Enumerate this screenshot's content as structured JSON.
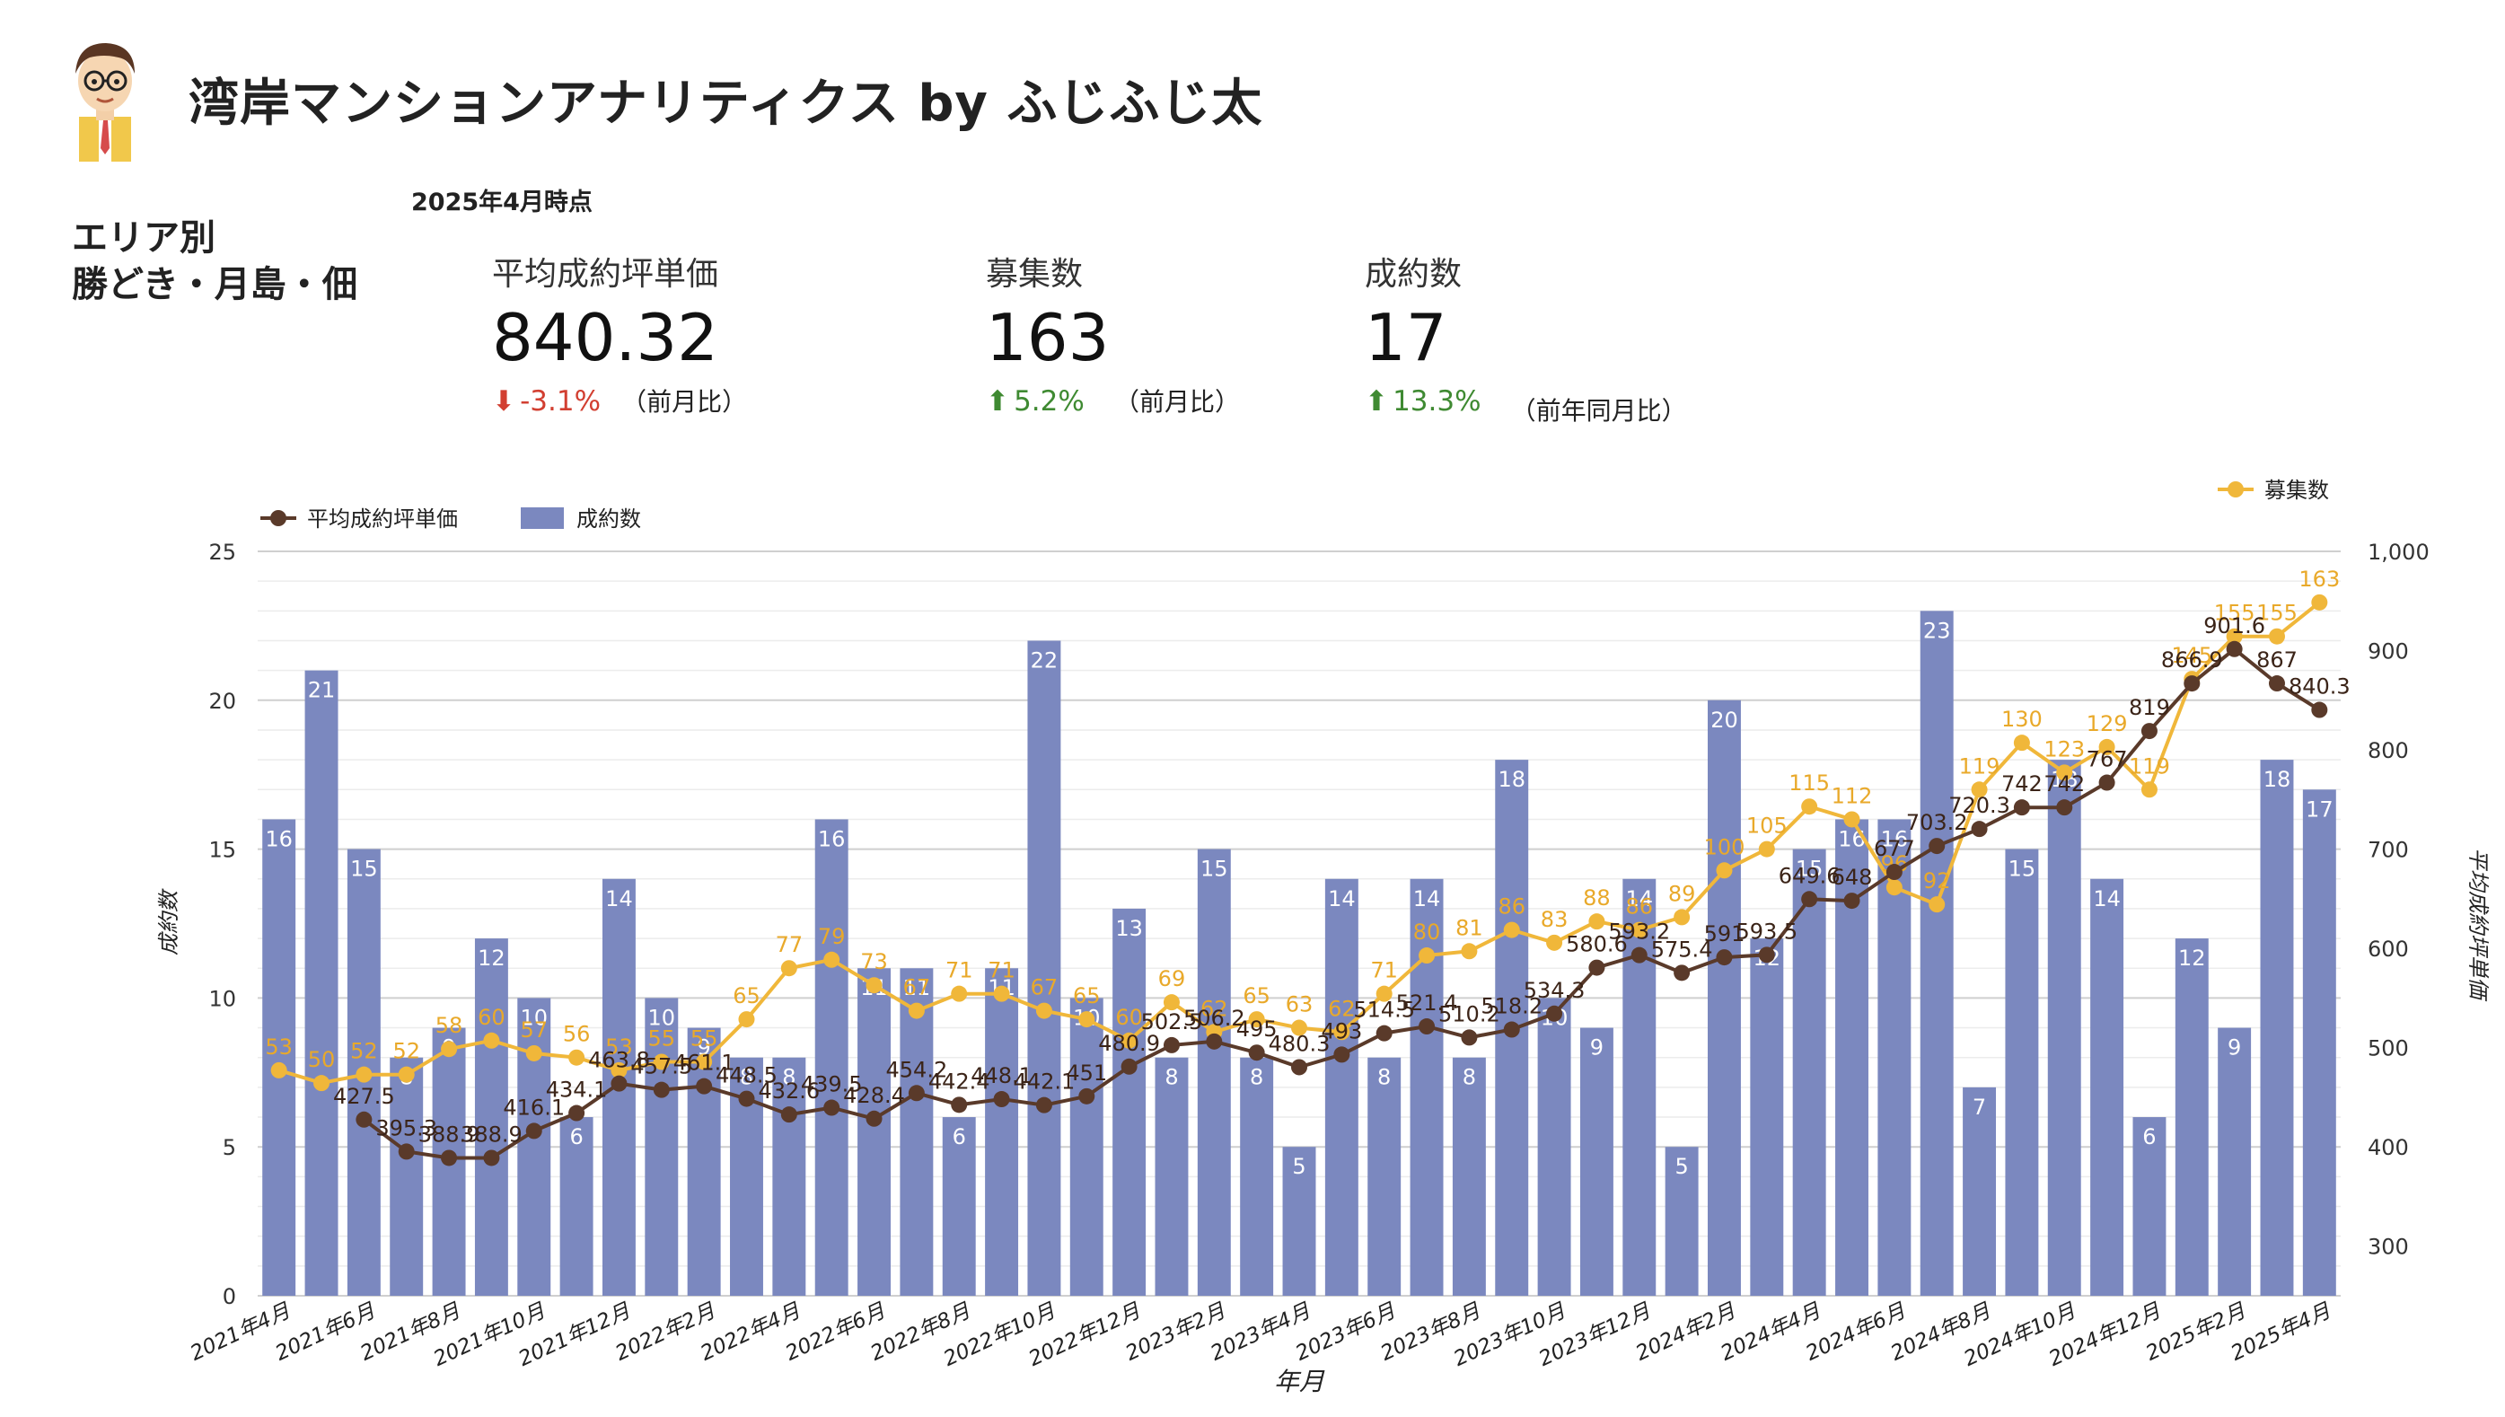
{
  "header": {
    "title": "湾岸マンションアナリティクス by ふじふじ太",
    "as_of": "2025年4月時点",
    "area_line1": "エリア別",
    "area_line2": "勝どき・月島・佃"
  },
  "kpis": [
    {
      "label": "平均成約坪単価",
      "value": "840.32",
      "change": "-3.1%",
      "direction": "down",
      "comparison": "（前月比）"
    },
    {
      "label": "募集数",
      "value": "163",
      "change": "5.2%",
      "direction": "up",
      "comparison": "（前月比）"
    },
    {
      "label": "成約数",
      "value": "17",
      "change": "13.3%",
      "direction": "up",
      "comparison": "（前年同月比）"
    }
  ],
  "icons": {
    "down": "arrow-down-icon",
    "up": "arrow-up-icon",
    "avatar": "avatar-icon"
  },
  "colors": {
    "bars": "#7b88bf",
    "price_line": "#5a3a2a",
    "listings_line": "#f0b73a",
    "grid": "#d9d9d9",
    "kpi_down": "#d23f31",
    "kpi_up": "#3f8a32"
  },
  "chart_data": {
    "type": "bar+line",
    "xlabel": "年月",
    "ylabel_left": "成約数",
    "ylabel_right": "平均成約坪単価",
    "ylim_left": [
      0,
      25
    ],
    "ylim_right": [
      250,
      1000
    ],
    "yticks_left": [
      "0",
      "5",
      "10",
      "15",
      "20",
      "25"
    ],
    "yticks_right": [
      "300",
      "400",
      "500",
      "600",
      "700",
      "800",
      "900",
      "1,000"
    ],
    "legend_top_left": [
      "平均成約坪単価",
      "成約数"
    ],
    "legend_top_right": [
      "募集数"
    ],
    "categories": [
      "2021年4月",
      "2021年5月",
      "2021年6月",
      "2021年7月",
      "2021年8月",
      "2021年9月",
      "2021年10月",
      "2021年11月",
      "2021年12月",
      "2022年1月",
      "2022年2月",
      "2022年3月",
      "2022年4月",
      "2022年5月",
      "2022年6月",
      "2022年7月",
      "2022年8月",
      "2022年9月",
      "2022年10月",
      "2022年11月",
      "2022年12月",
      "2023年1月",
      "2023年2月",
      "2023年3月",
      "2023年4月",
      "2023年5月",
      "2023年6月",
      "2023年7月",
      "2023年8月",
      "2023年9月",
      "2023年10月",
      "2023年11月",
      "2023年12月",
      "2024年1月",
      "2024年2月",
      "2024年3月",
      "2024年4月",
      "2024年5月",
      "2024年6月",
      "2024年7月",
      "2024年8月",
      "2024年9月",
      "2024年10月",
      "2024年11月",
      "2024年12月",
      "2025年1月",
      "2025年2月",
      "2025年3月",
      "2025年4月"
    ],
    "x_tick_labels": [
      "2021年4月",
      "2021年6月",
      "2021年8月",
      "2021年10月",
      "2021年12月",
      "2022年2月",
      "2022年4月",
      "2022年6月",
      "2022年8月",
      "2022年10月",
      "2022年12月",
      "2023年2月",
      "2023年4月",
      "2023年6月",
      "2023年8月",
      "2023年10月",
      "2023年12月",
      "2024年2月",
      "2024年4月",
      "2024年6月",
      "2024年8月",
      "2024年10月",
      "2024年12月",
      "2025年2月",
      "2025年4月"
    ],
    "series": [
      {
        "name": "成約数",
        "axis": "left",
        "kind": "bar",
        "values": [
          16,
          21,
          15,
          8,
          9,
          12,
          10,
          6,
          14,
          10,
          9,
          8,
          8,
          16,
          11,
          11,
          6,
          11,
          22,
          10,
          13,
          8,
          15,
          8,
          5,
          14,
          8,
          14,
          8,
          18,
          10,
          9,
          14,
          5,
          20,
          12,
          15,
          16,
          16,
          23,
          7,
          15,
          18,
          14,
          6,
          12,
          9,
          18,
          17
        ]
      },
      {
        "name": "平均成約坪単価",
        "axis": "right",
        "kind": "line",
        "values": [
          null,
          null,
          427.5,
          395.3,
          388.9,
          388.9,
          416.1,
          434.1,
          463.8,
          457.5,
          461.1,
          448.5,
          432.6,
          439.5,
          428.4,
          454.2,
          442.4,
          448.1,
          442.1,
          451,
          480.9,
          502.5,
          506.2,
          495,
          480.3,
          493,
          514.5,
          521.4,
          510.2,
          518.2,
          534.3,
          580.6,
          593.2,
          575.4,
          591,
          593.5,
          649.6,
          648,
          677,
          703.2,
          720.3,
          742,
          742,
          767,
          819,
          866.9,
          901.6,
          867,
          840.3
        ]
      },
      {
        "name": "募集数",
        "axis": "left",
        "kind": "line",
        "values": [
          53,
          50,
          52,
          52,
          58,
          60,
          57,
          56,
          53,
          55,
          55,
          65,
          77,
          79,
          73,
          67,
          71,
          71,
          67,
          65,
          60,
          69,
          62,
          65,
          63,
          62,
          71,
          80,
          81,
          86,
          83,
          88,
          86,
          89,
          100,
          105,
          115,
          112,
          96,
          92,
          119,
          130,
          123,
          129,
          119,
          145,
          155,
          155,
          163
        ]
      }
    ]
  }
}
